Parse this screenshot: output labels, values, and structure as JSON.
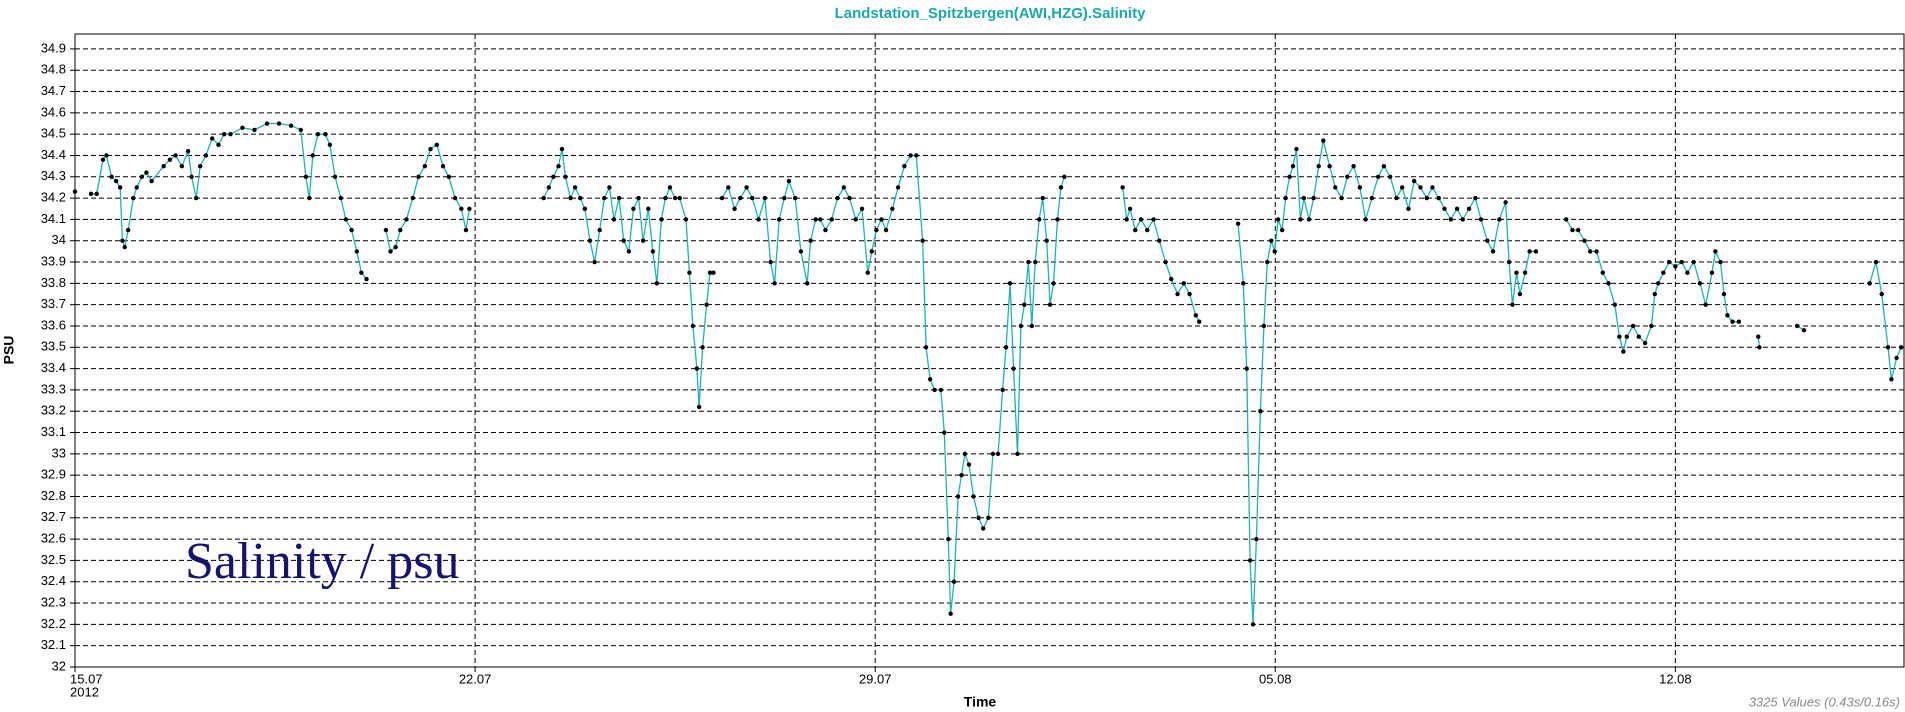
{
  "chart_data": {
    "type": "line",
    "title": "Landstation_Spitzbergen(AWI,HZG).Salinity",
    "ylabel": "PSU",
    "xlabel": "Time",
    "annotation": "Salinity / psu",
    "footer": "3325 Values (0.43s/0.16s)",
    "x_year_label": "2012",
    "xlim": [
      0,
      32
    ],
    "xticks": [
      {
        "value": 0,
        "label": "15.07"
      },
      {
        "value": 7,
        "label": "22.07"
      },
      {
        "value": 14,
        "label": "29.07"
      },
      {
        "value": 21,
        "label": "05.08"
      },
      {
        "value": 28,
        "label": "12.08"
      }
    ],
    "ylim": [
      32,
      34.97
    ],
    "yticks": [
      32,
      32.1,
      32.2,
      32.3,
      32.4,
      32.5,
      32.6,
      32.7,
      32.8,
      32.9,
      33,
      33.1,
      33.2,
      33.3,
      33.4,
      33.5,
      33.6,
      33.7,
      33.8,
      33.9,
      34,
      34.1,
      34.2,
      34.3,
      34.4,
      34.5,
      34.6,
      34.7,
      34.8,
      34.9
    ],
    "grid": true,
    "series": [
      {
        "name": "Salinity",
        "color": "#1fb3b3",
        "marker_color": "#000000",
        "x": [
          0.0,
          null,
          0.28,
          0.38,
          0.49,
          0.55,
          0.64,
          0.72,
          0.79,
          0.83,
          0.87,
          0.93,
          1.02,
          1.08,
          1.17,
          1.25,
          1.34,
          1.55,
          1.66,
          1.76,
          1.87,
          1.98,
          2.04,
          2.12,
          2.19,
          2.29,
          2.4,
          2.51,
          2.61,
          2.72,
          2.93,
          3.14,
          3.36,
          3.57,
          3.78,
          3.95,
          4.04,
          4.1,
          4.16,
          4.25,
          4.38,
          4.46,
          4.55,
          4.65,
          4.74,
          4.84,
          4.93,
          5.01,
          5.1,
          null,
          5.44,
          5.52,
          5.61,
          5.69,
          5.8,
          5.91,
          6.01,
          6.12,
          6.22,
          6.33,
          6.44,
          6.54,
          6.65,
          6.76,
          6.84,
          6.9,
          null,
          8.2,
          8.29,
          8.37,
          8.46,
          8.52,
          8.58,
          8.67,
          8.75,
          8.84,
          8.92,
          9.01,
          9.09,
          9.18,
          9.26,
          9.35,
          9.43,
          9.52,
          9.6,
          9.69,
          9.77,
          9.86,
          9.94,
          10.03,
          10.11,
          10.18,
          10.26,
          10.33,
          10.41,
          10.5,
          10.58,
          10.69,
          10.75,
          10.81,
          10.88,
          10.92,
          10.98,
          11.05,
          11.11,
          11.17,
          null,
          11.32,
          11.43,
          11.54,
          11.64,
          11.75,
          11.85,
          11.96,
          12.07,
          12.17,
          12.24,
          12.32,
          12.41,
          12.49,
          12.6,
          12.7,
          12.81,
          12.87,
          12.96,
          13.04,
          13.13,
          13.24,
          13.34,
          13.45,
          13.55,
          13.66,
          13.77,
          13.87,
          13.94,
          14.02,
          14.11,
          14.19,
          14.3,
          14.4,
          14.51,
          14.62,
          14.72,
          14.83,
          14.89,
          14.96,
          15.04,
          15.15,
          15.21,
          15.28,
          15.32,
          15.38,
          15.45,
          15.51,
          15.57,
          15.64,
          15.72,
          15.81,
          15.89,
          15.98,
          16.06,
          16.15,
          16.23,
          16.29,
          16.36,
          16.42,
          16.49,
          16.55,
          16.61,
          16.68,
          16.74,
          16.8,
          16.87,
          16.93,
          17.0,
          17.06,
          17.12,
          17.19,
          17.25,
          17.31,
          null,
          18.33,
          18.4,
          18.46,
          18.55,
          18.65,
          18.76,
          18.87,
          18.97,
          19.08,
          19.18,
          19.29,
          19.4,
          19.5,
          19.61,
          19.67,
          null,
          20.35,
          20.44,
          20.5,
          20.56,
          20.61,
          20.67,
          20.74,
          20.8,
          20.86,
          20.93,
          20.99,
          21.05,
          21.12,
          21.18,
          21.25,
          21.31,
          21.37,
          21.44,
          21.5,
          21.59,
          21.67,
          21.76,
          21.84,
          21.95,
          22.05,
          22.16,
          22.26,
          22.37,
          22.48,
          22.58,
          22.69,
          22.8,
          22.9,
          23.01,
          23.12,
          23.22,
          23.33,
          23.43,
          23.54,
          23.65,
          23.75,
          23.86,
          23.96,
          24.07,
          24.18,
          24.28,
          24.39,
          24.5,
          24.6,
          24.71,
          24.81,
          24.92,
          25.03,
          25.09,
          25.15,
          25.22,
          25.28,
          25.37,
          25.45,
          25.56,
          null,
          26.09,
          26.2,
          26.3,
          26.41,
          26.51,
          26.62,
          26.73,
          26.83,
          26.94,
          27.02,
          27.09,
          27.15,
          27.26,
          27.36,
          27.47,
          27.58,
          27.64,
          27.7,
          27.79,
          27.89,
          28.0,
          28.11,
          28.21,
          28.32,
          28.43,
          28.53,
          28.64,
          28.7,
          28.79,
          28.85,
          28.91,
          29.0,
          29.11,
          null,
          29.45,
          29.47,
          null,
          30.13,
          30.25,
          null,
          31.4,
          31.51,
          31.61,
          31.72,
          31.78,
          31.87,
          31.95
        ],
        "values": [
          34.23,
          null,
          34.22,
          34.22,
          34.38,
          34.4,
          34.3,
          34.28,
          34.25,
          34.0,
          33.97,
          34.05,
          34.2,
          34.25,
          34.3,
          34.32,
          34.28,
          34.35,
          34.38,
          34.4,
          34.35,
          34.42,
          34.3,
          34.2,
          34.35,
          34.4,
          34.48,
          34.45,
          34.5,
          34.5,
          34.53,
          34.52,
          34.55,
          34.55,
          34.54,
          34.52,
          34.3,
          34.2,
          34.4,
          34.5,
          34.5,
          34.45,
          34.3,
          34.2,
          34.1,
          34.05,
          33.95,
          33.85,
          33.82,
          null,
          34.05,
          33.95,
          33.97,
          34.05,
          34.1,
          34.2,
          34.3,
          34.35,
          34.43,
          34.45,
          34.35,
          34.3,
          34.2,
          34.15,
          34.05,
          34.15,
          null,
          34.2,
          34.25,
          34.3,
          34.35,
          34.43,
          34.3,
          34.2,
          34.25,
          34.2,
          34.15,
          34.0,
          33.9,
          34.05,
          34.2,
          34.25,
          34.1,
          34.2,
          34.0,
          33.95,
          34.15,
          34.2,
          34.0,
          34.15,
          33.95,
          33.8,
          34.1,
          34.2,
          34.25,
          34.2,
          34.2,
          34.1,
          33.85,
          33.6,
          33.4,
          33.22,
          33.5,
          33.7,
          33.85,
          33.85,
          null,
          34.2,
          34.25,
          34.15,
          34.2,
          34.25,
          34.2,
          34.1,
          34.2,
          33.9,
          33.8,
          34.1,
          34.2,
          34.28,
          34.2,
          33.95,
          33.8,
          34.0,
          34.1,
          34.1,
          34.05,
          34.1,
          34.2,
          34.25,
          34.2,
          34.1,
          34.15,
          33.85,
          33.95,
          34.05,
          34.1,
          34.05,
          34.15,
          34.25,
          34.35,
          34.4,
          34.4,
          34.0,
          33.5,
          33.35,
          33.3,
          33.3,
          33.1,
          32.6,
          32.25,
          32.4,
          32.8,
          32.9,
          33.0,
          32.95,
          32.8,
          32.7,
          32.65,
          32.7,
          33.0,
          33.0,
          33.3,
          33.5,
          33.8,
          33.4,
          33.0,
          33.6,
          33.7,
          33.9,
          33.6,
          33.9,
          34.1,
          34.2,
          34.0,
          33.7,
          33.8,
          34.1,
          34.25,
          34.3,
          null,
          34.25,
          34.1,
          34.15,
          34.05,
          34.1,
          34.05,
          34.1,
          34.0,
          33.9,
          33.82,
          33.75,
          33.8,
          33.75,
          33.65,
          33.62,
          null,
          34.08,
          33.8,
          33.4,
          32.5,
          32.2,
          32.6,
          33.2,
          33.6,
          33.9,
          34.0,
          33.95,
          34.1,
          34.05,
          34.2,
          34.3,
          34.35,
          34.43,
          34.1,
          34.2,
          34.1,
          34.2,
          34.35,
          34.47,
          34.35,
          34.25,
          34.2,
          34.3,
          34.35,
          34.25,
          34.1,
          34.2,
          34.3,
          34.35,
          34.3,
          34.2,
          34.25,
          34.15,
          34.28,
          34.25,
          34.2,
          34.25,
          34.2,
          34.15,
          34.1,
          34.15,
          34.1,
          34.15,
          34.2,
          34.1,
          34.0,
          33.95,
          34.1,
          34.18,
          33.9,
          33.7,
          33.85,
          33.75,
          33.85,
          33.95,
          33.95,
          null,
          34.1,
          34.05,
          34.05,
          34.0,
          33.95,
          33.95,
          33.85,
          33.8,
          33.7,
          33.55,
          33.48,
          33.55,
          33.6,
          33.55,
          33.52,
          33.6,
          33.75,
          33.8,
          33.85,
          33.9,
          33.88,
          33.9,
          33.85,
          33.9,
          33.8,
          33.7,
          33.85,
          33.95,
          33.9,
          33.75,
          33.65,
          33.62,
          33.62,
          null,
          33.55,
          33.5,
          null,
          33.6,
          33.58,
          null,
          33.8,
          33.9,
          33.75,
          33.5,
          33.35,
          33.45,
          33.5
        ]
      }
    ]
  }
}
